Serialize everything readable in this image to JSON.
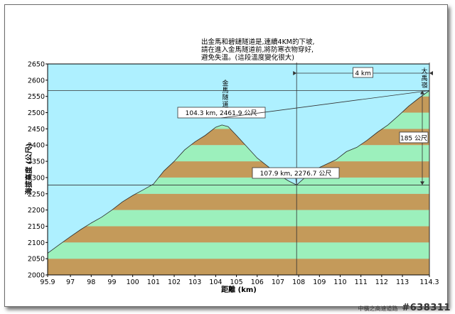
{
  "chart_data": {
    "type": "area",
    "ylabel": "海拔高度 (公尺)",
    "xlabel": "距離  (km)",
    "xlim": [
      95.9,
      114.3
    ],
    "ylim": [
      2000,
      2650
    ],
    "x_ticks": [
      95.9,
      97,
      98,
      99,
      100,
      101,
      102,
      103,
      104,
      105,
      106,
      107,
      108,
      109,
      110,
      111,
      112,
      113,
      114.3
    ],
    "y_ticks": [
      2000,
      2050,
      2100,
      2150,
      2200,
      2250,
      2300,
      2350,
      2400,
      2450,
      2500,
      2550,
      2600,
      2650
    ],
    "band_colors": [
      "#c49a5a",
      "#9cf0bc"
    ],
    "sky_color": "#aef0ff",
    "profile": [
      [
        95.9,
        2067
      ],
      [
        96.5,
        2095
      ],
      [
        97.0,
        2118
      ],
      [
        97.5,
        2140
      ],
      [
        98.0,
        2160
      ],
      [
        98.5,
        2178
      ],
      [
        99.0,
        2200
      ],
      [
        99.5,
        2225
      ],
      [
        100.0,
        2245
      ],
      [
        100.5,
        2262
      ],
      [
        101.0,
        2280
      ],
      [
        101.5,
        2320
      ],
      [
        102.0,
        2350
      ],
      [
        102.5,
        2385
      ],
      [
        103.0,
        2410
      ],
      [
        103.5,
        2430
      ],
      [
        104.0,
        2455
      ],
      [
        104.3,
        2462
      ],
      [
        104.6,
        2457
      ],
      [
        105.0,
        2430
      ],
      [
        105.5,
        2395
      ],
      [
        106.0,
        2360
      ],
      [
        106.5,
        2335
      ],
      [
        107.0,
        2310
      ],
      [
        107.5,
        2290
      ],
      [
        107.9,
        2277
      ],
      [
        108.3,
        2300
      ],
      [
        108.8,
        2325
      ],
      [
        109.3,
        2340
      ],
      [
        109.8,
        2355
      ],
      [
        110.3,
        2380
      ],
      [
        110.8,
        2393
      ],
      [
        111.3,
        2415
      ],
      [
        111.8,
        2440
      ],
      [
        112.3,
        2462
      ],
      [
        112.8,
        2490
      ],
      [
        113.3,
        2520
      ],
      [
        113.8,
        2545
      ],
      [
        114.3,
        2568
      ]
    ],
    "annotations": {
      "top_note": [
        "出金馬和碧鏈隧道是,連續4KM的下坡,",
        "請在進入金馬隧道前,將防寒衣物穿好,",
        "避免失溫。(這段溫度變化很大)"
      ],
      "distance_label": "4 km",
      "elevation_label": "185 公尺",
      "peak_label": "104.3 km, 2461.9 公尺",
      "valley_label": "107.9 km, 2276.7 公尺",
      "tunnel_label": "金馬隧道",
      "summit_label": "大禹嶺"
    }
  },
  "watermark": {
    "small": "中橫之高速道路",
    "big": "#638311"
  }
}
